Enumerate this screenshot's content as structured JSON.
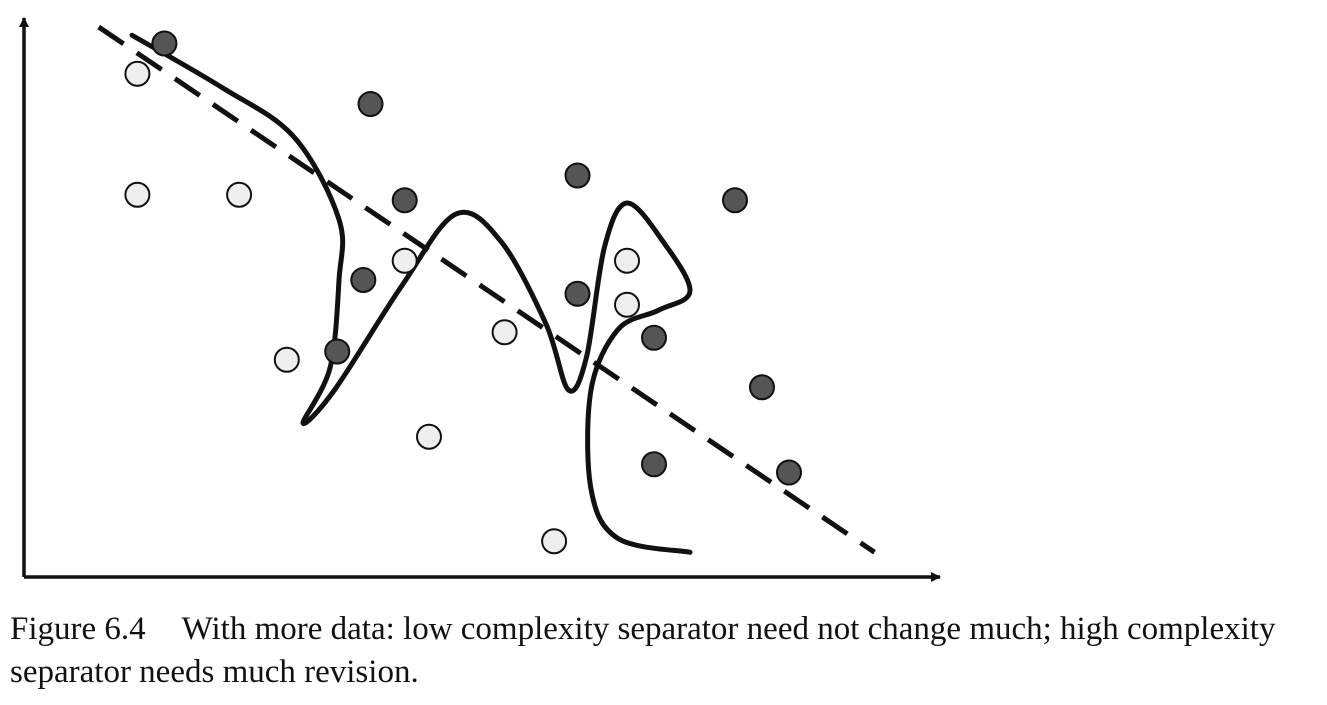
{
  "chart_data": {
    "type": "scatter",
    "title": "",
    "xlabel": "",
    "ylabel": "",
    "xlim": [
      0,
      10
    ],
    "ylim": [
      0,
      10
    ],
    "grid": false,
    "legend": "none",
    "series": [
      {
        "class": "dark",
        "color": "#555555",
        "points": [
          [
            1.56,
            9.7
          ],
          [
            3.85,
            8.6
          ],
          [
            4.23,
            6.85
          ],
          [
            6.15,
            7.3
          ],
          [
            7.9,
            6.85
          ],
          [
            3.77,
            5.4
          ],
          [
            6.15,
            5.15
          ],
          [
            3.48,
            4.1
          ],
          [
            7.0,
            4.35
          ],
          [
            8.2,
            3.45
          ],
          [
            7.0,
            2.05
          ],
          [
            8.5,
            1.9
          ]
        ]
      },
      {
        "class": "light",
        "color": "#eeeeee",
        "points": [
          [
            1.26,
            9.15
          ],
          [
            1.26,
            6.95
          ],
          [
            2.39,
            6.95
          ],
          [
            4.23,
            5.75
          ],
          [
            6.7,
            5.75
          ],
          [
            6.7,
            4.95
          ],
          [
            5.34,
            4.45
          ],
          [
            2.92,
            3.95
          ],
          [
            4.5,
            2.55
          ],
          [
            5.89,
            0.65
          ]
        ]
      }
    ],
    "separators": [
      {
        "kind": "low-complexity",
        "style": "dashed",
        "points": [
          [
            0.83,
            10.0
          ],
          [
            9.45,
            0.45
          ]
        ]
      },
      {
        "kind": "high-complexity",
        "style": "solid",
        "points": [
          [
            1.2,
            9.85
          ],
          [
            2.2,
            8.9
          ],
          [
            3.0,
            8.0
          ],
          [
            3.5,
            6.5
          ],
          [
            3.5,
            5.4
          ],
          [
            3.4,
            3.8
          ],
          [
            3.1,
            2.8
          ],
          [
            3.45,
            3.4
          ],
          [
            4.2,
            5.3
          ],
          [
            4.8,
            6.6
          ],
          [
            5.3,
            6.1
          ],
          [
            5.8,
            4.6
          ],
          [
            6.05,
            3.4
          ],
          [
            6.25,
            4.0
          ],
          [
            6.45,
            6.0
          ],
          [
            6.7,
            6.8
          ],
          [
            7.1,
            6.1
          ],
          [
            7.4,
            5.2
          ],
          [
            7.05,
            4.85
          ],
          [
            6.6,
            4.5
          ],
          [
            6.3,
            3.4
          ],
          [
            6.3,
            1.6
          ],
          [
            6.6,
            0.7
          ],
          [
            7.4,
            0.45
          ]
        ]
      }
    ]
  },
  "caption": {
    "label": "Figure 6.4",
    "text": "With more data: low complexity separator need not change much; high complexity separator needs much revision."
  }
}
